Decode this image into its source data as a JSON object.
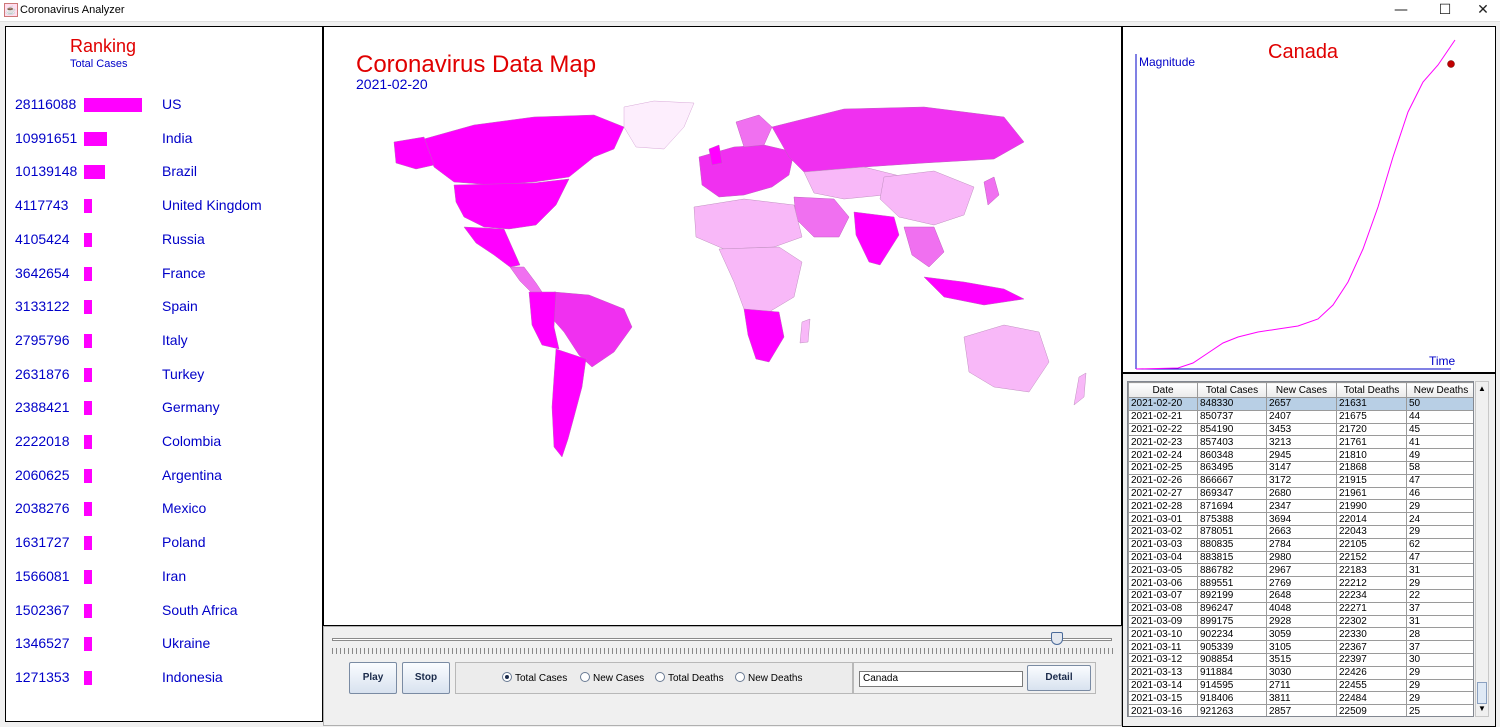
{
  "window": {
    "title": "Coronavirus Analyzer",
    "app_icon": "java-cup-icon",
    "minimize": "—",
    "maximize": "☐",
    "close": "✕"
  },
  "ranking": {
    "title": "Ranking",
    "subtitle": "Total Cases",
    "bar_color": "#ff00ff",
    "items": [
      {
        "value": "28116088",
        "country": "US"
      },
      {
        "value": "10991651",
        "country": "India"
      },
      {
        "value": "10139148",
        "country": "Brazil"
      },
      {
        "value": "4117743",
        "country": "United Kingdom"
      },
      {
        "value": "4105424",
        "country": "Russia"
      },
      {
        "value": "3642654",
        "country": "France"
      },
      {
        "value": "3133122",
        "country": "Spain"
      },
      {
        "value": "2795796",
        "country": "Italy"
      },
      {
        "value": "2631876",
        "country": "Turkey"
      },
      {
        "value": "2388421",
        "country": "Germany"
      },
      {
        "value": "2222018",
        "country": "Colombia"
      },
      {
        "value": "2060625",
        "country": "Argentina"
      },
      {
        "value": "2038276",
        "country": "Mexico"
      },
      {
        "value": "1631727",
        "country": "Poland"
      },
      {
        "value": "1566081",
        "country": "Iran"
      },
      {
        "value": "1502367",
        "country": "South Africa"
      },
      {
        "value": "1346527",
        "country": "Ukraine"
      },
      {
        "value": "1271353",
        "country": "Indonesia"
      }
    ]
  },
  "map": {
    "title": "Coronavirus Data Map",
    "date": "2021-02-20",
    "colors": {
      "high": "#ff00ff",
      "mid": "#f070f0",
      "low": "#f8b8f8",
      "none": "#fdeefd"
    }
  },
  "controls": {
    "timeline_position": 0.93,
    "play_label": "Play",
    "stop_label": "Stop",
    "radios": [
      {
        "label": "Total Cases",
        "selected": true
      },
      {
        "label": "New Cases",
        "selected": false
      },
      {
        "label": "Total Deaths",
        "selected": false
      },
      {
        "label": "New Deaths",
        "selected": false
      }
    ],
    "country_value": "Canada",
    "detail_label": "Detail"
  },
  "chart": {
    "title": "Canada",
    "ylabel": "Magnitude",
    "xlabel": "Time",
    "line_color": "#ff00ff",
    "marker_color": "#c00000"
  },
  "table": {
    "columns": [
      "Date",
      "Total Cases",
      "New Cases",
      "Total Deaths",
      "New Deaths"
    ],
    "rows": [
      [
        "2021-02-20",
        "848330",
        "2657",
        "21631",
        "50"
      ],
      [
        "2021-02-21",
        "850737",
        "2407",
        "21675",
        "44"
      ],
      [
        "2021-02-22",
        "854190",
        "3453",
        "21720",
        "45"
      ],
      [
        "2021-02-23",
        "857403",
        "3213",
        "21761",
        "41"
      ],
      [
        "2021-02-24",
        "860348",
        "2945",
        "21810",
        "49"
      ],
      [
        "2021-02-25",
        "863495",
        "3147",
        "21868",
        "58"
      ],
      [
        "2021-02-26",
        "866667",
        "3172",
        "21915",
        "47"
      ],
      [
        "2021-02-27",
        "869347",
        "2680",
        "21961",
        "46"
      ],
      [
        "2021-02-28",
        "871694",
        "2347",
        "21990",
        "29"
      ],
      [
        "2021-03-01",
        "875388",
        "3694",
        "22014",
        "24"
      ],
      [
        "2021-03-02",
        "878051",
        "2663",
        "22043",
        "29"
      ],
      [
        "2021-03-03",
        "880835",
        "2784",
        "22105",
        "62"
      ],
      [
        "2021-03-04",
        "883815",
        "2980",
        "22152",
        "47"
      ],
      [
        "2021-03-05",
        "886782",
        "2967",
        "22183",
        "31"
      ],
      [
        "2021-03-06",
        "889551",
        "2769",
        "22212",
        "29"
      ],
      [
        "2021-03-07",
        "892199",
        "2648",
        "22234",
        "22"
      ],
      [
        "2021-03-08",
        "896247",
        "4048",
        "22271",
        "37"
      ],
      [
        "2021-03-09",
        "899175",
        "2928",
        "22302",
        "31"
      ],
      [
        "2021-03-10",
        "902234",
        "3059",
        "22330",
        "28"
      ],
      [
        "2021-03-11",
        "905339",
        "3105",
        "22367",
        "37"
      ],
      [
        "2021-03-12",
        "908854",
        "3515",
        "22397",
        "30"
      ],
      [
        "2021-03-13",
        "911884",
        "3030",
        "22426",
        "29"
      ],
      [
        "2021-03-14",
        "914595",
        "2711",
        "22455",
        "29"
      ],
      [
        "2021-03-15",
        "918406",
        "3811",
        "22484",
        "29"
      ],
      [
        "2021-03-16",
        "921263",
        "2857",
        "22509",
        "25"
      ]
    ]
  }
}
